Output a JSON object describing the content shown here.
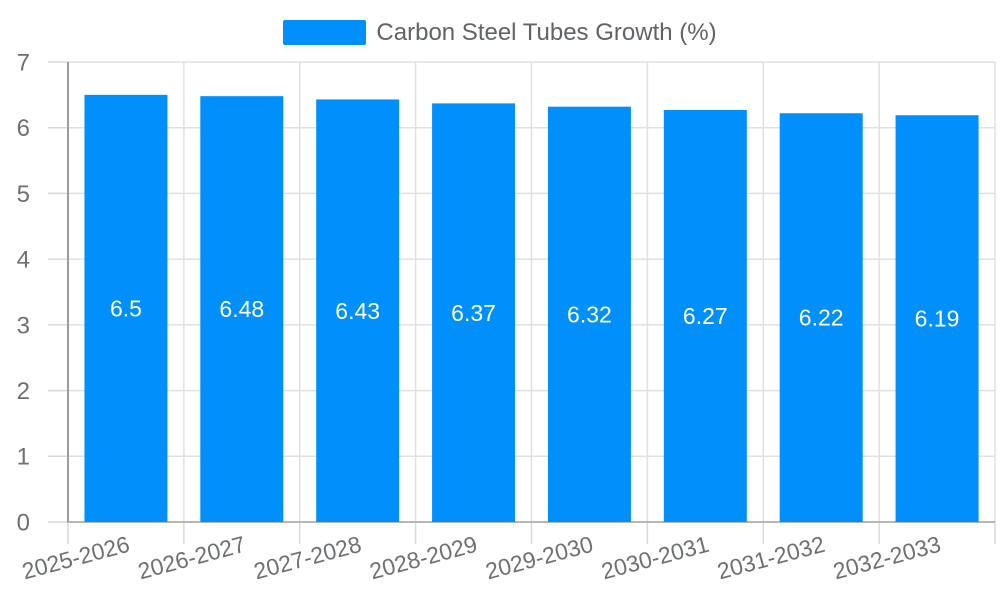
{
  "chart_data": {
    "type": "bar",
    "title": "",
    "legend_position": "top",
    "categories": [
      "2025-2026",
      "2026-2027",
      "2027-2028",
      "2028-2029",
      "2029-2030",
      "2030-2031",
      "2031-2032",
      "2032-2033"
    ],
    "series": [
      {
        "name": "Carbon Steel Tubes Growth (%)",
        "color": "#008FFB",
        "values": [
          6.5,
          6.48,
          6.43,
          6.37,
          6.32,
          6.27,
          6.22,
          6.19
        ]
      }
    ],
    "bar_labels": [
      "6.5",
      "6.48",
      "6.43",
      "6.37",
      "6.32",
      "6.27",
      "6.22",
      "6.19"
    ],
    "bar_label_color": "#ffffff",
    "ylim": [
      0,
      7
    ],
    "ytick_step": 1,
    "grid": true,
    "x_label_rotation": -15,
    "xlabel": "",
    "ylabel": ""
  },
  "colors": {
    "bar": "#008FFB",
    "grid": "#e0e0e0",
    "y_axis_line": "#9b9b9b",
    "x_axis_line": "#b6b6b6",
    "tick": "#d9d9d9",
    "axis_label": "#6e7173",
    "legend_text": "#5f6468",
    "background": "#ffffff"
  }
}
